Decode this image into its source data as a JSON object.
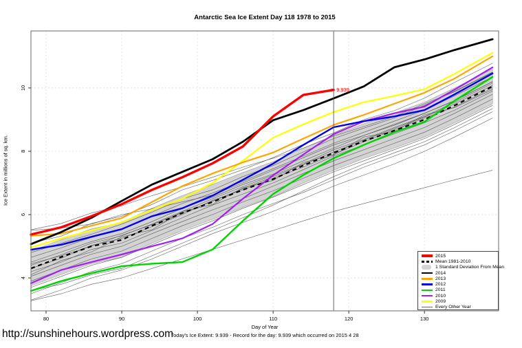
{
  "title": "Antarctic Sea Ice Extent Day 118 1978 to 2015",
  "url_text": "http://sunshinehours.wordpress.com",
  "caption": "Today's Ice Extent: 9.939  - Record for the day: 9.939 which occurred on 2015 4 28",
  "axes": {
    "x_label": "Day of Year",
    "y_label": "Ice Extent in millions of sq. km.",
    "x_ticks": [
      80,
      90,
      100,
      110,
      120,
      130
    ],
    "y_ticks": [
      4,
      6,
      8,
      10
    ],
    "x_range": [
      78,
      139.8
    ],
    "y_range": [
      2.96,
      11.8
    ],
    "grid": true
  },
  "annotation": {
    "vline_day": 118,
    "label": "9.939",
    "value": 9.939
  },
  "colors": {
    "red_2015": "#FF0000",
    "black_2014": "#000000",
    "orange_2013": "#FFA500",
    "blue_2012": "#0000EE",
    "green_2011": "#00D400",
    "purple_2010": "#A020F0",
    "yellow_2009": "#FFFF00",
    "mean_dash": "#000000",
    "band_fill": "#D3D3D3",
    "band_edge": "#9A9A9A",
    "other_year": "#4D4D4D",
    "grid": "#E1E1E1",
    "border": "#808080",
    "tick": "#333333",
    "vline": "#555555",
    "annotation_text": "#FF0000"
  },
  "legend": {
    "items": [
      {
        "label": "2015",
        "swatch": "line-thick",
        "color": "#FF0000"
      },
      {
        "label": "Mean 1981-2010",
        "swatch": "line-dashed",
        "color": "#000000"
      },
      {
        "label": "1 Standard Deviation From Mean",
        "swatch": "band",
        "color": "#D3D3D3"
      },
      {
        "label": "2014",
        "swatch": "line",
        "color": "#000000"
      },
      {
        "label": "2013",
        "swatch": "line",
        "color": "#FFA500"
      },
      {
        "label": "2012",
        "swatch": "line",
        "color": "#0000EE"
      },
      {
        "label": "2011",
        "swatch": "line",
        "color": "#00D400"
      },
      {
        "label": "2010",
        "swatch": "line",
        "color": "#A020F0"
      },
      {
        "label": "2009",
        "swatch": "line",
        "color": "#FFFF00"
      },
      {
        "label": "Every Other Year",
        "swatch": "line-thin",
        "color": "#666666"
      }
    ]
  },
  "chart_data": {
    "type": "line",
    "title": "Antarctic Sea Ice Extent Day 118 1978 to 2015",
    "xlabel": "Day of Year",
    "ylabel": "Ice Extent in millions of sq. km.",
    "xlim": [
      78,
      139.8
    ],
    "ylim": [
      2.96,
      11.8
    ],
    "x": [
      78,
      82,
      86,
      90,
      94,
      98,
      102,
      106,
      110,
      114,
      118,
      122,
      126,
      130,
      134,
      139
    ],
    "band": {
      "name": "1 Standard Deviation From Mean",
      "center_series": "Mean 1981-2010",
      "halfwidth": 0.55
    },
    "series": [
      {
        "name": "Mean 1981-2010",
        "role": "mean",
        "color_key": "mean_dash",
        "width": 2.2,
        "dash": "6 5",
        "values": [
          4.3,
          4.66,
          5.0,
          5.2,
          5.65,
          6.05,
          6.4,
          6.78,
          7.12,
          7.55,
          7.95,
          8.32,
          8.65,
          9.0,
          9.45,
          10.05
        ]
      },
      {
        "name": "2009",
        "role": "year",
        "color_key": "yellow_2009",
        "width": 2.2,
        "dash": "",
        "values": [
          4.96,
          5.25,
          5.5,
          5.76,
          6.15,
          6.5,
          7.0,
          7.7,
          8.43,
          8.85,
          9.24,
          9.55,
          9.75,
          9.96,
          10.45,
          11.11
        ]
      },
      {
        "name": "2010",
        "role": "year",
        "color_key": "purple_2010",
        "width": 2.2,
        "dash": "",
        "values": [
          3.83,
          4.25,
          4.5,
          4.74,
          5.0,
          5.25,
          5.7,
          6.5,
          7.24,
          7.9,
          8.54,
          8.95,
          9.2,
          9.41,
          9.95,
          10.65
        ]
      },
      {
        "name": "2011",
        "role": "year",
        "color_key": "green_2011",
        "width": 2.4,
        "dash": "",
        "values": [
          3.59,
          3.9,
          4.15,
          4.37,
          4.45,
          4.5,
          4.9,
          5.8,
          6.65,
          7.25,
          7.78,
          8.2,
          8.6,
          8.93,
          9.6,
          10.35
        ]
      },
      {
        "name": "2012",
        "role": "year",
        "color_key": "blue_2012",
        "width": 2.4,
        "dash": "",
        "values": [
          4.89,
          5.05,
          5.3,
          5.54,
          5.95,
          6.2,
          6.6,
          7.1,
          7.61,
          8.2,
          8.76,
          8.95,
          9.1,
          9.3,
          9.8,
          10.46
        ]
      },
      {
        "name": "2013",
        "role": "year",
        "color_key": "orange_2013",
        "width": 2.2,
        "dash": "",
        "values": [
          5.33,
          5.4,
          5.65,
          5.89,
          6.4,
          6.9,
          7.3,
          7.65,
          7.96,
          8.4,
          8.83,
          9.15,
          9.5,
          9.85,
          10.3,
          11.0
        ]
      },
      {
        "name": "2014",
        "role": "year",
        "color_key": "black_2014",
        "width": 2.8,
        "dash": "",
        "values": [
          5.07,
          5.45,
          5.9,
          6.43,
          6.95,
          7.35,
          7.75,
          8.3,
          8.98,
          9.3,
          9.67,
          10.05,
          10.65,
          10.9,
          11.2,
          11.54
        ]
      },
      {
        "name": "2015",
        "role": "year",
        "color_key": "red_2015",
        "width": 3.4,
        "dash": "",
        "x": [
          78,
          82,
          86,
          90,
          94,
          98,
          102,
          106,
          110,
          114,
          118
        ],
        "values": [
          5.37,
          5.6,
          5.95,
          6.33,
          6.78,
          7.18,
          7.62,
          8.15,
          9.1,
          9.78,
          9.939
        ]
      }
    ],
    "background_series": [
      {
        "name": "other-year-1",
        "values": [
          5.52,
          5.72,
          6.05,
          6.28,
          6.6,
          6.88,
          7.18,
          7.5,
          7.78,
          8.1,
          8.48,
          8.78,
          9.1,
          9.5,
          9.88,
          10.5
        ]
      },
      {
        "name": "other-year-2",
        "values": [
          5.1,
          5.32,
          5.72,
          5.95,
          6.32,
          6.78,
          7.08,
          7.42,
          7.8,
          8.22,
          8.58,
          9.0,
          9.28,
          9.68,
          10.18,
          10.78
        ]
      },
      {
        "name": "other-year-3",
        "values": [
          4.8,
          5.1,
          5.38,
          5.7,
          6.08,
          6.5,
          6.78,
          7.2,
          7.55,
          7.98,
          8.4,
          8.73,
          9.05,
          9.45,
          9.9,
          10.5
        ]
      },
      {
        "name": "other-year-4",
        "values": [
          4.65,
          4.95,
          5.28,
          5.55,
          5.95,
          6.35,
          6.68,
          7.05,
          7.45,
          7.85,
          8.25,
          8.6,
          8.95,
          9.3,
          9.75,
          10.35
        ]
      },
      {
        "name": "other-year-5",
        "values": [
          4.5,
          4.82,
          5.15,
          5.4,
          5.78,
          6.2,
          6.55,
          6.95,
          7.28,
          7.7,
          8.1,
          8.5,
          8.85,
          9.2,
          9.6,
          10.2
        ]
      },
      {
        "name": "other-year-6",
        "values": [
          4.4,
          4.73,
          5.1,
          5.33,
          5.7,
          6.1,
          6.5,
          6.88,
          7.25,
          7.6,
          8.05,
          8.38,
          8.75,
          9.1,
          9.55,
          10.15
        ]
      },
      {
        "name": "other-year-7",
        "values": [
          4.3,
          4.62,
          5.03,
          5.25,
          5.62,
          6.0,
          6.45,
          6.78,
          7.15,
          7.5,
          7.9,
          8.3,
          8.68,
          9.05,
          9.4,
          10.0
        ]
      },
      {
        "name": "other-year-8",
        "values": [
          4.2,
          4.5,
          4.9,
          5.1,
          5.5,
          5.9,
          6.3,
          6.65,
          7.0,
          7.42,
          7.85,
          8.2,
          8.55,
          8.9,
          9.3,
          9.9
        ]
      },
      {
        "name": "other-year-9",
        "values": [
          4.05,
          4.4,
          4.75,
          5.0,
          5.4,
          5.78,
          6.15,
          6.5,
          6.9,
          7.3,
          7.7,
          8.05,
          8.4,
          8.75,
          9.2,
          9.8
        ]
      },
      {
        "name": "other-year-10",
        "values": [
          3.9,
          4.25,
          4.6,
          4.85,
          5.25,
          5.65,
          6.0,
          6.4,
          6.75,
          7.15,
          7.55,
          7.9,
          8.25,
          8.6,
          9.05,
          9.65
        ]
      },
      {
        "name": "other-year-11",
        "values": [
          3.7,
          4.05,
          4.4,
          4.65,
          5.05,
          5.45,
          5.8,
          6.2,
          6.55,
          6.95,
          7.35,
          7.7,
          8.05,
          8.4,
          8.85,
          9.45
        ]
      },
      {
        "name": "other-year-12",
        "values": [
          3.5,
          3.85,
          4.2,
          4.45,
          4.85,
          5.25,
          5.6,
          6.0,
          6.35,
          6.7,
          7.1,
          7.5,
          7.85,
          8.2,
          8.65,
          9.25
        ]
      },
      {
        "name": "other-year-13",
        "values": [
          3.3,
          3.62,
          4.0,
          4.25,
          4.6,
          5.0,
          5.4,
          5.75,
          6.1,
          6.5,
          6.9,
          7.25,
          7.6,
          8.0,
          8.45,
          9.05
        ]
      },
      {
        "name": "other-year-14",
        "values": [
          3.28,
          3.5,
          3.8,
          4.0,
          4.3,
          4.6,
          4.9,
          5.2,
          5.5,
          5.8,
          6.1,
          6.35,
          6.6,
          6.85,
          7.1,
          7.4
        ]
      },
      {
        "name": "other-year-15",
        "values": [
          5.5,
          5.58,
          5.7,
          6.0,
          6.18,
          6.4,
          6.62,
          7.0,
          7.4,
          7.8,
          8.2,
          8.5,
          8.82,
          9.2,
          9.6,
          10.2
        ]
      },
      {
        "name": "other-year-16",
        "values": [
          4.1,
          4.55,
          4.82,
          5.3,
          5.52,
          6.1,
          6.32,
          6.85,
          7.08,
          7.65,
          7.88,
          8.45,
          8.62,
          9.15,
          9.38,
          9.95
        ]
      },
      {
        "name": "other-year-17",
        "values": [
          3.6,
          3.8,
          4.1,
          4.3,
          4.7,
          5.1,
          5.5,
          5.9,
          6.3,
          6.75,
          7.2,
          7.6,
          7.95,
          8.3,
          8.75,
          9.35
        ]
      },
      {
        "name": "other-year-18",
        "values": [
          4.45,
          4.7,
          5.0,
          5.35,
          5.68,
          6.05,
          6.42,
          6.82,
          7.2,
          7.58,
          7.98,
          8.35,
          8.72,
          9.08,
          9.5,
          10.08
        ]
      }
    ]
  }
}
